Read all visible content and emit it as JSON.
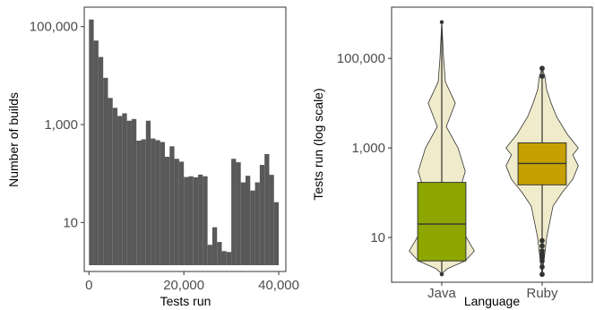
{
  "chart_data": [
    {
      "type": "bar",
      "subtype": "histogram",
      "xlabel": "Tests run",
      "ylabel": "Number of builds",
      "xlim": [
        -1000,
        41500
      ],
      "ylim": [
        1,
        250000
      ],
      "yscale": "log",
      "x_ticks": [
        0,
        20000,
        40000
      ],
      "x_tick_labels": [
        "0",
        "20,000",
        "40,000"
      ],
      "y_ticks": [
        10,
        1000,
        100000
      ],
      "y_tick_labels": [
        "10",
        "1,000",
        "100,000"
      ],
      "grid": false,
      "bar_color": "#595959",
      "bin_width": 1000,
      "bin_starts": [
        0,
        1000,
        2000,
        3000,
        4000,
        5000,
        6000,
        7000,
        8000,
        9000,
        10000,
        11000,
        12000,
        13000,
        14000,
        15000,
        16000,
        17000,
        18000,
        19000,
        20000,
        21000,
        22000,
        23000,
        24000,
        25000,
        26000,
        27000,
        28000,
        29000,
        30000,
        31000,
        32000,
        33000,
        34000,
        35000,
        36000,
        37000,
        38000,
        39000
      ],
      "values": [
        140000,
        52000,
        24000,
        9000,
        3500,
        2200,
        1500,
        1700,
        1200,
        1300,
        470,
        500,
        1200,
        520,
        480,
        440,
        220,
        360,
        200,
        175,
        85,
        88,
        84,
        95,
        88,
        3.5,
        8,
        4,
        2.6,
        2.5,
        200,
        170,
        66,
        90,
        45,
        66,
        150,
        250,
        94,
        26
      ]
    },
    {
      "type": "box",
      "subtype": "violin-boxplot",
      "xlabel": "Language",
      "ylabel": "Tests run (log scale)",
      "yscale": "log",
      "ylim": [
        1,
        1400000
      ],
      "y_ticks": [
        10,
        1000,
        100000
      ],
      "y_tick_labels": [
        "10",
        "1,000",
        "100,000"
      ],
      "categories": [
        "Java",
        "Ruby"
      ],
      "grid": false,
      "violin_color": "#f0eccb",
      "series": [
        {
          "name": "Java",
          "color": "#8ea700",
          "min": 1.5,
          "q1": 3,
          "median": 20,
          "q3": 170,
          "max": 650000,
          "violin_profile": [
            {
              "y": 1.6,
              "w": 0.01
            },
            {
              "y": 2,
              "w": 0.06
            },
            {
              "y": 3,
              "w": 0.26
            },
            {
              "y": 5,
              "w": 0.36
            },
            {
              "y": 8,
              "w": 0.3
            },
            {
              "y": 12,
              "w": 0.25
            },
            {
              "y": 25,
              "w": 0.24
            },
            {
              "y": 50,
              "w": 0.14
            },
            {
              "y": 100,
              "w": 0.19
            },
            {
              "y": 300,
              "w": 0.26
            },
            {
              "y": 1000,
              "w": 0.18
            },
            {
              "y": 3000,
              "w": 0.05
            },
            {
              "y": 10000,
              "w": 0.15
            },
            {
              "y": 30000,
              "w": 0.04
            },
            {
              "y": 100000,
              "w": 0.02
            },
            {
              "y": 650000,
              "w": 0.0
            }
          ]
        },
        {
          "name": "Ruby",
          "color": "#c5a000",
          "min": 1.5,
          "q1": 150,
          "median": 450,
          "q3": 1300,
          "max": 60000,
          "outliers": [
            1.5,
            2.2,
            3,
            3.6,
            4.2,
            5,
            6.5,
            8.5,
            40000,
            60000
          ],
          "violin_profile": [
            {
              "y": 1.5,
              "w": 0.0
            },
            {
              "y": 3,
              "w": 0.02
            },
            {
              "y": 10,
              "w": 0.05
            },
            {
              "y": 50,
              "w": 0.12
            },
            {
              "y": 100,
              "w": 0.22
            },
            {
              "y": 200,
              "w": 0.34
            },
            {
              "y": 400,
              "w": 0.4
            },
            {
              "y": 700,
              "w": 0.34
            },
            {
              "y": 1000,
              "w": 0.4
            },
            {
              "y": 2000,
              "w": 0.28
            },
            {
              "y": 5000,
              "w": 0.16
            },
            {
              "y": 10000,
              "w": 0.1
            },
            {
              "y": 20000,
              "w": 0.05
            },
            {
              "y": 40000,
              "w": 0.03
            },
            {
              "y": 60000,
              "w": 0.0
            }
          ]
        }
      ]
    }
  ]
}
